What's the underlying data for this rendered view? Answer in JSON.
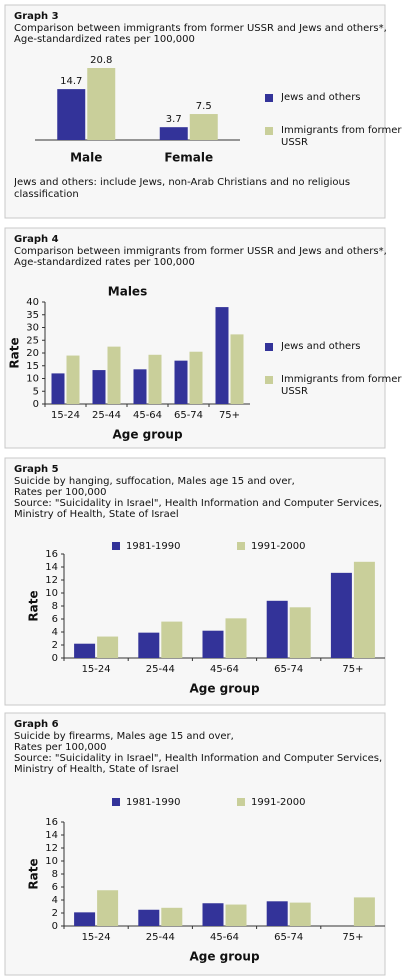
{
  "chart_data": [
    {
      "type": "bar",
      "heading": "Graph 3",
      "subtitle": [
        "Comparison between immigrants from former USSR and Jews and others*,",
        "Age-standardized rates per 100,000"
      ],
      "categories": [
        "Male",
        "Female"
      ],
      "series": [
        {
          "name": "Jews and others",
          "color": "#333399",
          "values": [
            14.7,
            3.7
          ]
        },
        {
          "name": "Immigrants from former USSR",
          "color": "#c9cf9a",
          "values": [
            20.8,
            7.5
          ]
        }
      ],
      "data_labels": true,
      "legend": "right",
      "note": "Jews and others: include Jews, non-Arab Christians and no religious classification"
    },
    {
      "type": "bar",
      "heading": "Graph 4",
      "subtitle": [
        "Comparison between immigrants from former USSR and Jews and others*,",
        "Age-standardized rates per 100,000"
      ],
      "title": "Males",
      "categories": [
        "15-24",
        "25-44",
        "45-64",
        "65-74",
        "75+"
      ],
      "series": [
        {
          "name": "Jews and others",
          "color": "#333399",
          "values": [
            12,
            13.3,
            13.6,
            17,
            38
          ]
        },
        {
          "name": "Immigrants from former USSR",
          "color": "#c9cf9a",
          "values": [
            19,
            22.5,
            19.3,
            20.5,
            27.3
          ]
        }
      ],
      "ylim": [
        0,
        40
      ],
      "yticks": [
        0,
        5,
        10,
        15,
        20,
        25,
        30,
        35,
        40
      ],
      "xlabel": "Age group",
      "ylabel": "Rate",
      "legend": "right"
    },
    {
      "type": "bar",
      "heading": "Graph 5",
      "subtitle": [
        "Suicide by hanging, suffocation, Males age 15 and over,",
        "Rates per 100,000",
        "Source: \"Suicidality in Israel\", Health Information and Computer Services,",
        "Ministry of Health, State of Israel"
      ],
      "categories": [
        "15-24",
        "25-44",
        "45-64",
        "65-74",
        "75+"
      ],
      "series": [
        {
          "name": "1981-1990",
          "color": "#333399",
          "values": [
            2.2,
            3.9,
            4.2,
            8.8,
            13.1
          ]
        },
        {
          "name": "1991-2000",
          "color": "#c9cf9a",
          "values": [
            3.3,
            5.6,
            6.1,
            7.8,
            14.8
          ]
        }
      ],
      "ylim": [
        0,
        16
      ],
      "yticks": [
        0,
        2,
        4,
        6,
        8,
        10,
        12,
        14,
        16
      ],
      "xlabel": "Age group",
      "ylabel": "Rate",
      "legend": "top"
    },
    {
      "type": "bar",
      "heading": "Graph 6",
      "subtitle": [
        "Suicide by firearms, Males age 15 and over,",
        "Rates per 100,000",
        "Source: \"Suicidality in Israel\", Health Information and Computer Services,",
        "Ministry of Health, State of Israel"
      ],
      "categories": [
        "15-24",
        "25-44",
        "45-64",
        "65-74",
        "75+"
      ],
      "series": [
        {
          "name": "1981-1990",
          "color": "#333399",
          "values": [
            2.1,
            2.5,
            3.5,
            3.8,
            null
          ]
        },
        {
          "name": "1991-2000",
          "color": "#c9cf9a",
          "values": [
            5.5,
            2.8,
            3.3,
            3.6,
            4.4
          ]
        }
      ],
      "ylim": [
        0,
        16
      ],
      "yticks": [
        0,
        2,
        4,
        6,
        8,
        10,
        12,
        14,
        16
      ],
      "xlabel": "Age group",
      "ylabel": "Rate",
      "legend": "top"
    }
  ]
}
